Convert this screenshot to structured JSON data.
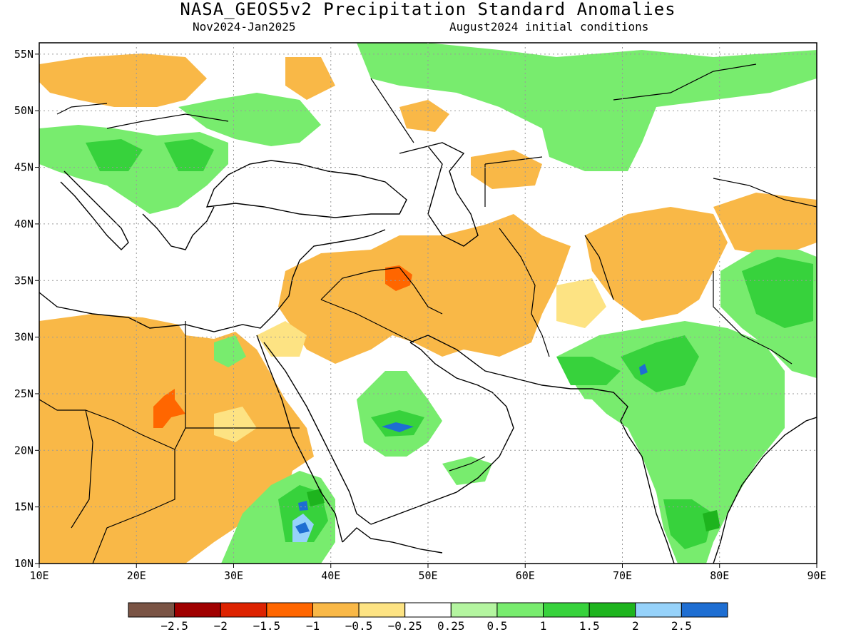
{
  "header": {
    "title": "NASA_GEOS5v2 Precipitation Standard Anomalies",
    "period": "Nov2024-Jan2025",
    "init": "August2024 initial conditions"
  },
  "map": {
    "lon_range": [
      10,
      90
    ],
    "lat_range": [
      10,
      56
    ],
    "x_ticks": [
      "10E",
      "20E",
      "30E",
      "40E",
      "50E",
      "60E",
      "70E",
      "80E",
      "90E"
    ],
    "y_ticks": [
      "10N",
      "15N",
      "20N",
      "25N",
      "30N",
      "35N",
      "40N",
      "45N",
      "50N",
      "55N"
    ],
    "grid": true
  },
  "colorbar": {
    "labels": [
      "-2.5",
      "-2",
      "-1.5",
      "-1",
      "-0.5",
      "-0.25",
      "0.25",
      "0.5",
      "1",
      "1.5",
      "2",
      "2.5"
    ],
    "colors": [
      "#7a5445",
      "#a00000",
      "#dd2200",
      "#ff6600",
      "#f9b847",
      "#fde383",
      "#ffffff",
      "#b4f5a0",
      "#78ec6e",
      "#37d23c",
      "#1eb41e",
      "#96d2fa",
      "#1e6ed2"
    ]
  }
}
